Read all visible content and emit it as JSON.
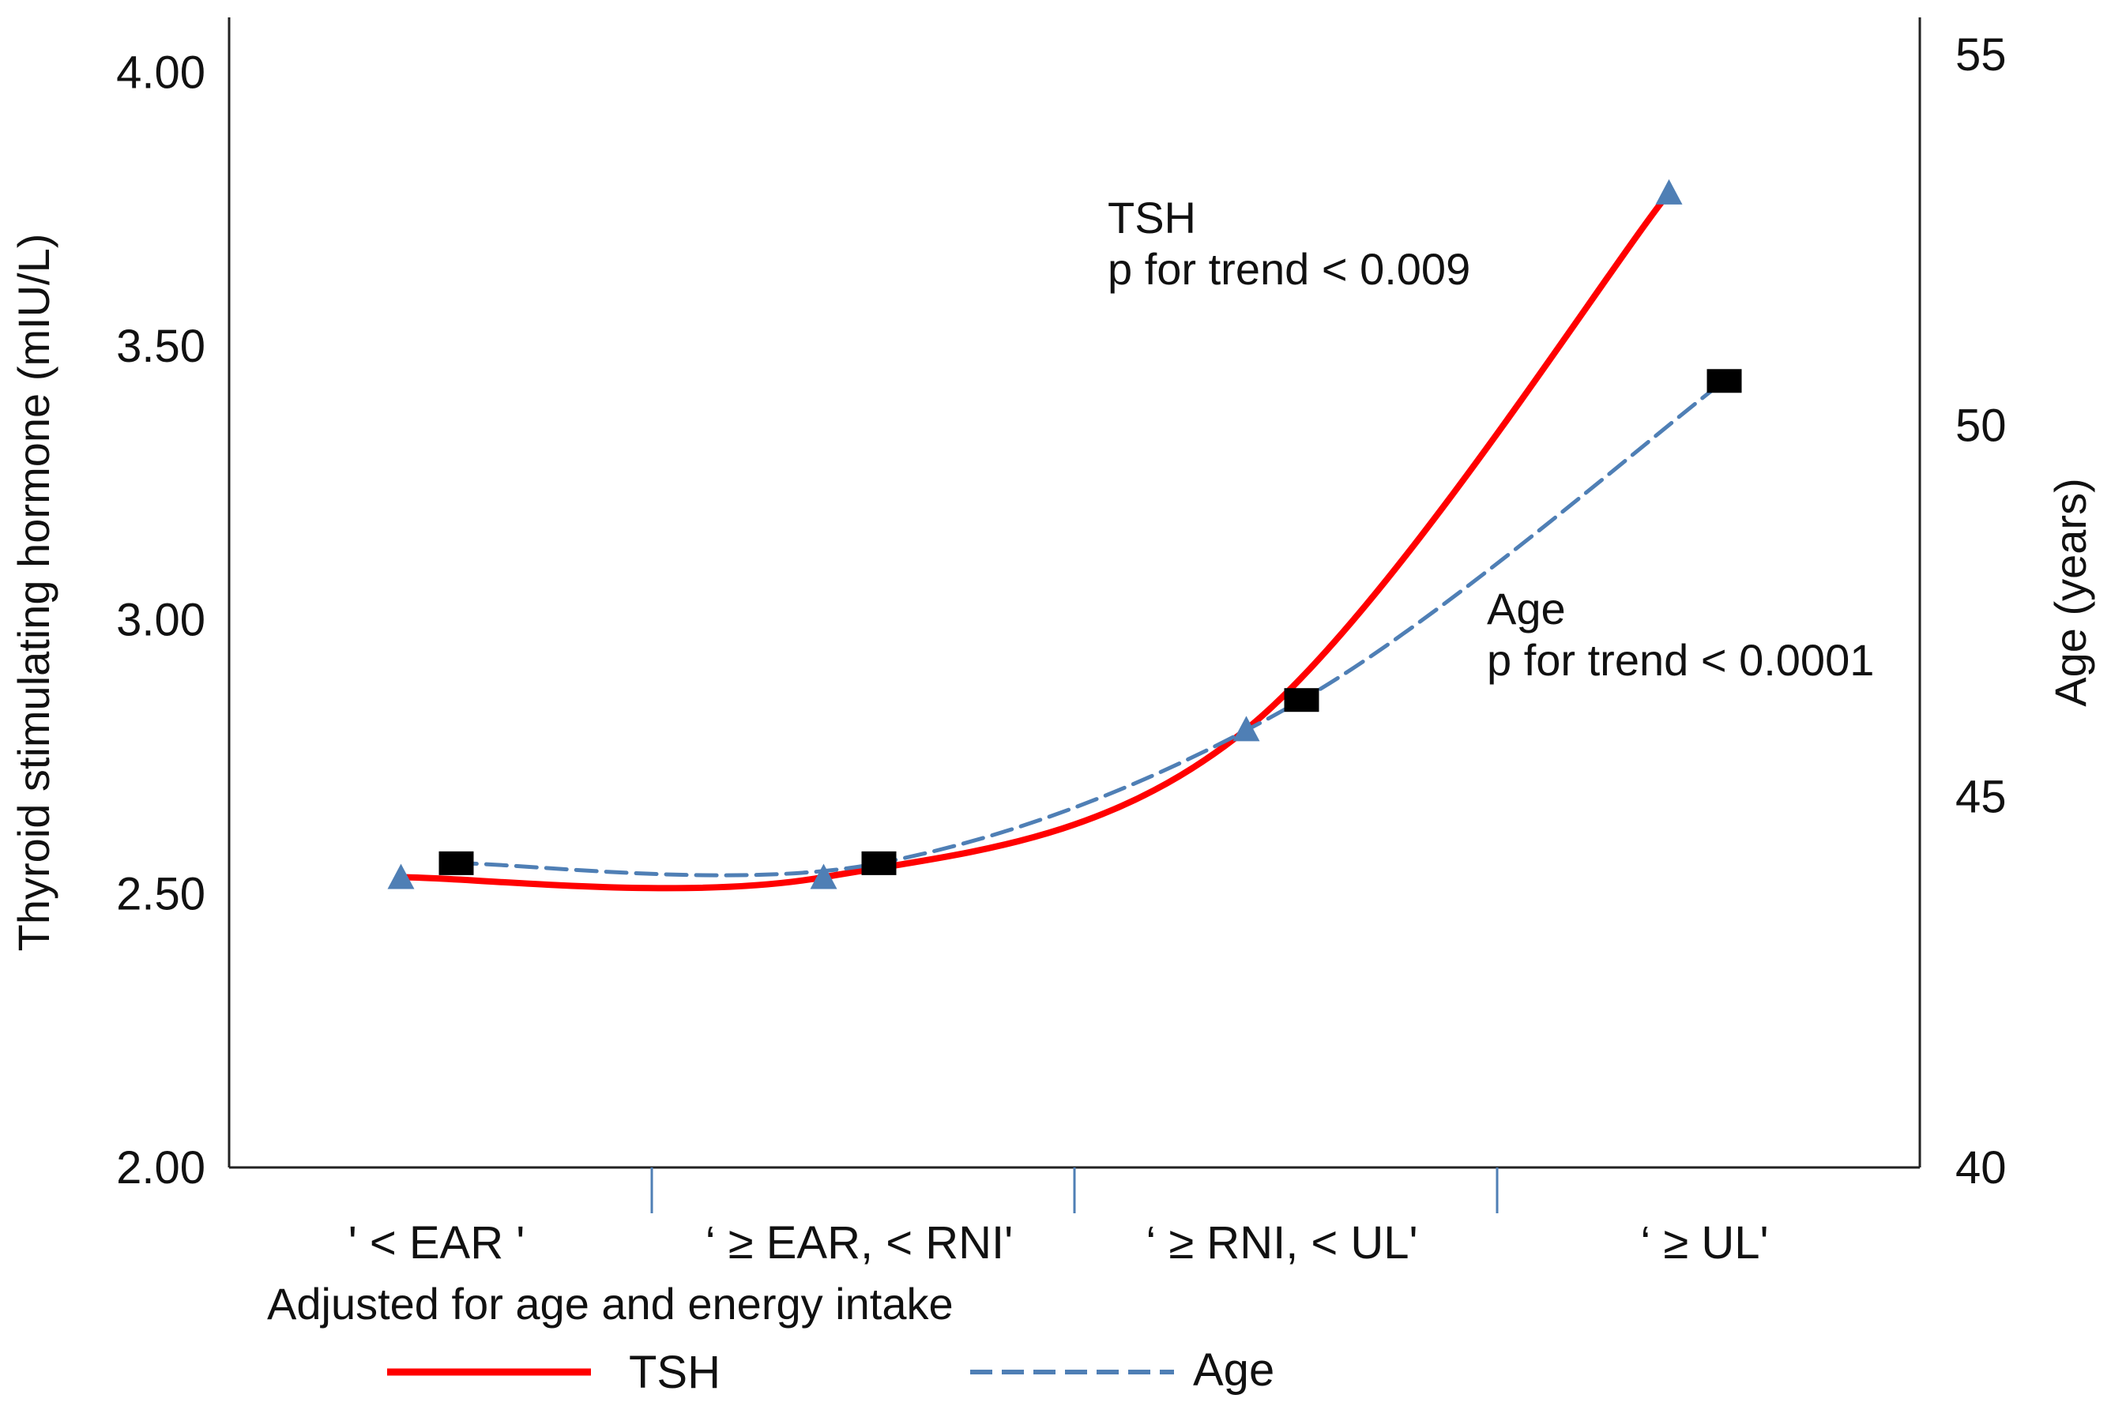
{
  "chart_data": {
    "type": "line",
    "categories": [
      "' < EAR '",
      "‘ ≥ EAR, < RNI'",
      "‘ ≥ RNI, < UL'",
      "‘ ≥ UL'"
    ],
    "left_axis": {
      "label": "Thyroid stimulating hormone (mIU/L)",
      "range": [
        2.0,
        4.1
      ],
      "ticks": [
        2.0,
        2.5,
        3.0,
        3.5,
        4.0
      ],
      "tick_labels": [
        "2.00",
        "2.50",
        "3.00",
        "3.50",
        "4.00"
      ]
    },
    "right_axis": {
      "label": "Age (years)",
      "range": [
        40,
        55.5
      ],
      "ticks": [
        40,
        45,
        50,
        55
      ],
      "tick_labels": [
        "40",
        "45",
        "50",
        "55"
      ]
    },
    "series": [
      {
        "name": "TSH",
        "axis": "left",
        "color": "#ff0000",
        "style": "solid",
        "marker": "triangle",
        "marker_color": "#4f7fb5",
        "values": [
          2.53,
          2.53,
          2.8,
          3.78
        ]
      },
      {
        "name": "Age",
        "axis": "right",
        "color": "#4f7fb5",
        "style": "dashed",
        "marker": "square",
        "marker_color": "#000000",
        "values": [
          44.1,
          44.1,
          46.3,
          50.6
        ]
      }
    ],
    "annotations": [
      {
        "series": "TSH",
        "lines": [
          "TSH",
          "p for trend < 0.009"
        ]
      },
      {
        "series": "Age",
        "lines": [
          "Age",
          "p for trend < 0.0001"
        ]
      }
    ],
    "note": "Adjusted for age and energy intake",
    "legend": [
      {
        "label": "TSH",
        "color": "#ff0000",
        "style": "solid"
      },
      {
        "label": "Age",
        "color": "#4f7fb5",
        "style": "dashed"
      }
    ],
    "legend_position": "bottom"
  }
}
